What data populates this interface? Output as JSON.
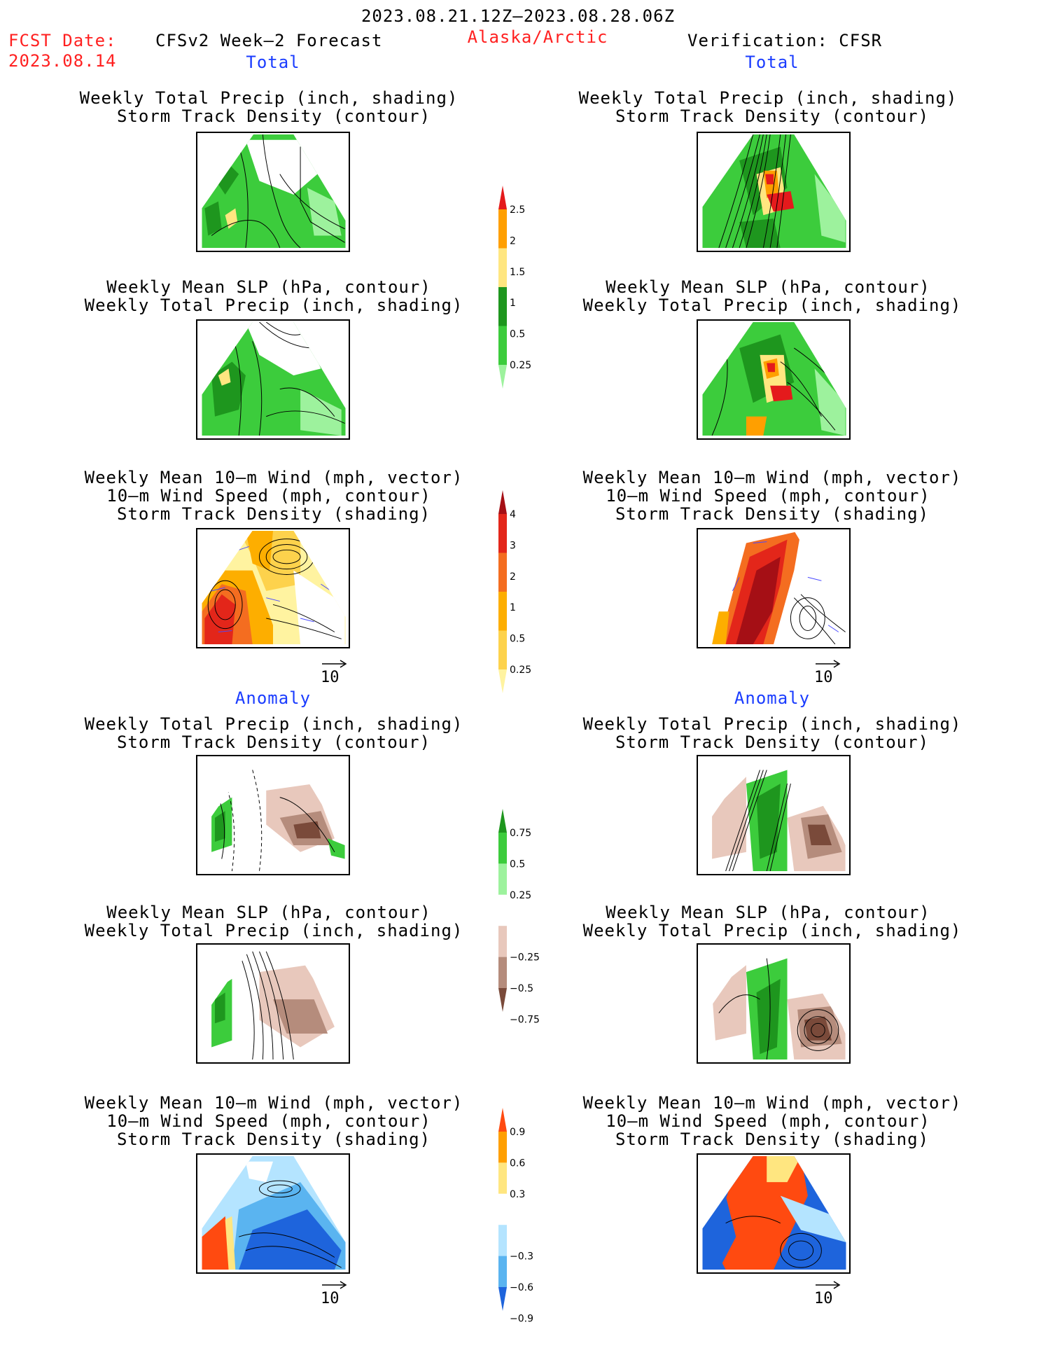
{
  "header": {
    "period": "2023.08.21.12Z—2023.08.28.06Z",
    "fcst_label": "FCST Date:",
    "fcst_date": "2023.08.14",
    "model": "CFSv2 Week—2 Forecast",
    "region": "Alaska/Arctic",
    "verification": "Verification: CFSR"
  },
  "sections": {
    "total": "Total",
    "anomaly": "Anomaly"
  },
  "panel_titles": {
    "precip_storm": [
      "Weekly Total Precip (inch, shading)",
      "Storm Track Density (contour)"
    ],
    "slp_precip": [
      "Weekly Mean SLP (hPa, contour)",
      "Weekly Total Precip (inch, shading)"
    ],
    "wind_storm": [
      "Weekly Mean 10—m Wind (mph, vector)",
      "10—m Wind Speed (mph, contour)",
      "Storm Track Density (shading)"
    ]
  },
  "vector_scale": "10",
  "colorbars": {
    "total_precip": {
      "labels": [
        "2.5",
        "2",
        "1.5",
        "1",
        "0.5",
        "0.25"
      ],
      "colors": [
        "#e41a1c",
        "#ff9f00",
        "#ffe680",
        "#1e961e",
        "#3ccc3c",
        "#9df29d"
      ]
    },
    "total_storm": {
      "labels": [
        "4",
        "3",
        "2",
        "1",
        "0.5",
        "0.25"
      ],
      "colors": [
        "#a50f15",
        "#e3261a",
        "#f46d20",
        "#fdae00",
        "#fdd24c",
        "#fff3a0"
      ]
    },
    "anom_precip": {
      "labels": [
        "0.75",
        "0.5",
        "0.25",
        "−0.25",
        "−0.5",
        "−0.75"
      ],
      "colors": [
        "#1e961e",
        "#3ccc3c",
        "#9df29d",
        "#ffffff",
        "#e8c8bc",
        "#b58c7c",
        "#7a4a3a"
      ]
    },
    "anom_storm": {
      "labels": [
        "0.9",
        "0.6",
        "0.3",
        "−0.3",
        "−0.6",
        "−0.9"
      ],
      "colors": [
        "#ff4a10",
        "#ff9f00",
        "#ffe680",
        "#ffffff",
        "#b4e4ff",
        "#5ab4f0",
        "#1e64dc"
      ]
    }
  }
}
